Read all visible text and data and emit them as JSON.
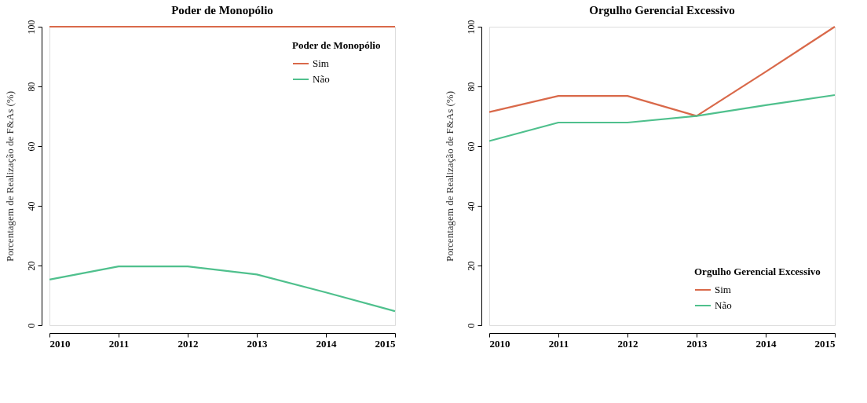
{
  "chart_data": [
    {
      "type": "line",
      "title": "Poder de Monopólio",
      "ylabel": "Porcentagem de Realização de F&As (%)",
      "legend_title": "Poder de Monopólio",
      "legend": "top right",
      "grid": false,
      "marker": "none",
      "line_style": "solid",
      "x": [
        2010,
        2011,
        2012,
        2013,
        2014,
        2015
      ],
      "xlim": [
        2010,
        2015
      ],
      "xticks": [
        2010,
        2011,
        2012,
        2013,
        2014,
        2015
      ],
      "ylim": [
        0,
        100
      ],
      "yticks": [
        0,
        20,
        40,
        60,
        80,
        100
      ],
      "series": [
        {
          "name": "Sim",
          "color": "#d9694a",
          "values": [
            100,
            100,
            100,
            100,
            100,
            100
          ]
        },
        {
          "name": "Não",
          "color": "#4fc08d",
          "values": [
            15.3,
            19.7,
            19.7,
            17.0,
            11.0,
            4.7
          ]
        }
      ]
    },
    {
      "type": "line",
      "title": "Orgulho Gerencial Excessivo",
      "ylabel": "Porcentagem de Realização de F&As (%)",
      "legend_title": "Orgulho Gerencial Excessivo",
      "legend": "bottom right",
      "grid": false,
      "marker": "none",
      "line_style": "solid",
      "x": [
        2010,
        2011,
        2012,
        2013,
        2014,
        2015
      ],
      "xlim": [
        2010,
        2015
      ],
      "xticks": [
        2010,
        2011,
        2012,
        2013,
        2014,
        2015
      ],
      "ylim": [
        0,
        100
      ],
      "yticks": [
        0,
        20,
        40,
        60,
        80,
        100
      ],
      "series": [
        {
          "name": "Sim",
          "color": "#d9694a",
          "values": [
            71.4,
            76.8,
            76.8,
            70.1,
            84.9,
            100
          ]
        },
        {
          "name": "Não",
          "color": "#4fc08d",
          "values": [
            61.7,
            67.9,
            67.9,
            70.1,
            73.7,
            77.1
          ]
        }
      ]
    }
  ]
}
